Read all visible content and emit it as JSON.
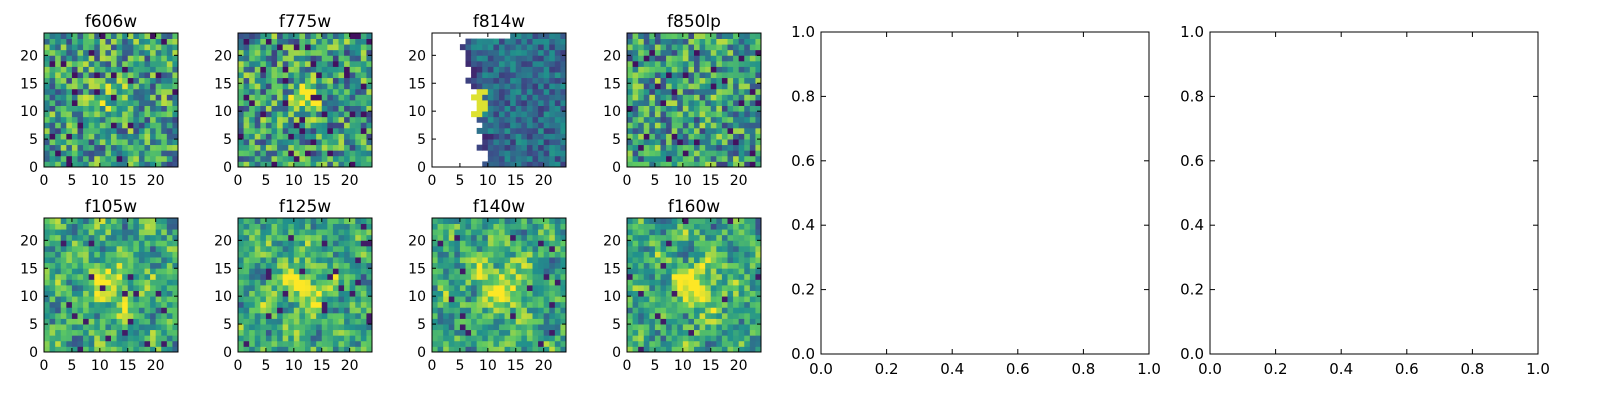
{
  "colors": {
    "background": "#ffffff",
    "axes_edge": "#000000",
    "colormap": [
      "#440154",
      "#3b528b",
      "#21918c",
      "#5ec962",
      "#fde725"
    ]
  },
  "chart_data": [
    {
      "type": "heatmap",
      "title": "f606w",
      "colormap": "viridis",
      "grid_size": [
        24,
        24
      ],
      "xticks": [
        "0",
        "5",
        "10",
        "15",
        "20"
      ],
      "yticks": [
        "0",
        "5",
        "10",
        "15",
        "20"
      ],
      "xlim": [
        0,
        24
      ],
      "ylim": [
        0,
        24
      ],
      "pattern": "noisy field, faint central source"
    },
    {
      "type": "heatmap",
      "title": "f775w",
      "colormap": "viridis",
      "grid_size": [
        24,
        24
      ],
      "xticks": [
        "0",
        "5",
        "10",
        "15",
        "20"
      ],
      "yticks": [
        "0",
        "5",
        "10",
        "15",
        "20"
      ],
      "xlim": [
        0,
        24
      ],
      "ylim": [
        0,
        24
      ],
      "pattern": "noisy field, central source"
    },
    {
      "type": "heatmap",
      "title": "f814w",
      "colormap": "viridis",
      "grid_size": [
        24,
        24
      ],
      "xticks": [
        "0",
        "5",
        "10",
        "15",
        "20"
      ],
      "yticks": [
        "0",
        "5",
        "10",
        "15",
        "20"
      ],
      "xlim": [
        0,
        24
      ],
      "ylim": [
        0,
        24
      ],
      "pattern": "left region blank (no data), bright column near detector edge"
    },
    {
      "type": "heatmap",
      "title": "f850lp",
      "colormap": "viridis",
      "grid_size": [
        24,
        24
      ],
      "xticks": [
        "0",
        "5",
        "10",
        "15",
        "20"
      ],
      "yticks": [
        "0",
        "5",
        "10",
        "15",
        "20"
      ],
      "xlim": [
        0,
        24
      ],
      "ylim": [
        0,
        24
      ],
      "pattern": "noisy field"
    },
    {
      "type": "heatmap",
      "title": "f105w",
      "colormap": "viridis",
      "grid_size": [
        24,
        24
      ],
      "xticks": [
        "0",
        "5",
        "10",
        "15",
        "20"
      ],
      "yticks": [
        "0",
        "5",
        "10",
        "15",
        "20"
      ],
      "xlim": [
        0,
        24
      ],
      "ylim": [
        0,
        24
      ],
      "pattern": "smooth field, central source"
    },
    {
      "type": "heatmap",
      "title": "f125w",
      "colormap": "viridis",
      "grid_size": [
        24,
        24
      ],
      "xticks": [
        "0",
        "5",
        "10",
        "15",
        "20"
      ],
      "yticks": [
        "0",
        "5",
        "10",
        "15",
        "20"
      ],
      "xlim": [
        0,
        24
      ],
      "ylim": [
        0,
        24
      ],
      "pattern": "smooth field"
    },
    {
      "type": "heatmap",
      "title": "f140w",
      "colormap": "viridis",
      "grid_size": [
        24,
        24
      ],
      "xticks": [
        "0",
        "5",
        "10",
        "15",
        "20"
      ],
      "yticks": [
        "0",
        "5",
        "10",
        "15",
        "20"
      ],
      "xlim": [
        0,
        24
      ],
      "ylim": [
        0,
        24
      ],
      "pattern": "smooth field"
    },
    {
      "type": "heatmap",
      "title": "f160w",
      "colormap": "viridis",
      "grid_size": [
        24,
        24
      ],
      "xticks": [
        "0",
        "5",
        "10",
        "15",
        "20"
      ],
      "yticks": [
        "0",
        "5",
        "10",
        "15",
        "20"
      ],
      "xlim": [
        0,
        24
      ],
      "ylim": [
        0,
        24
      ],
      "pattern": "smooth field, bright central source"
    },
    {
      "type": "line",
      "title": "",
      "series": [],
      "xlim": [
        0.0,
        1.0
      ],
      "ylim": [
        0.0,
        1.0
      ],
      "xticks": [
        "0.0",
        "0.2",
        "0.4",
        "0.6",
        "0.8",
        "1.0"
      ],
      "yticks": [
        "0.0",
        "0.2",
        "0.4",
        "0.6",
        "0.8",
        "1.0"
      ]
    },
    {
      "type": "line",
      "title": "",
      "series": [],
      "xlim": [
        0.0,
        1.0
      ],
      "ylim": [
        0.0,
        1.0
      ],
      "xticks": [
        "0.0",
        "0.2",
        "0.4",
        "0.6",
        "0.8",
        "1.0"
      ],
      "yticks": [
        "0.0",
        "0.2",
        "0.4",
        "0.6",
        "0.8",
        "1.0"
      ]
    }
  ]
}
